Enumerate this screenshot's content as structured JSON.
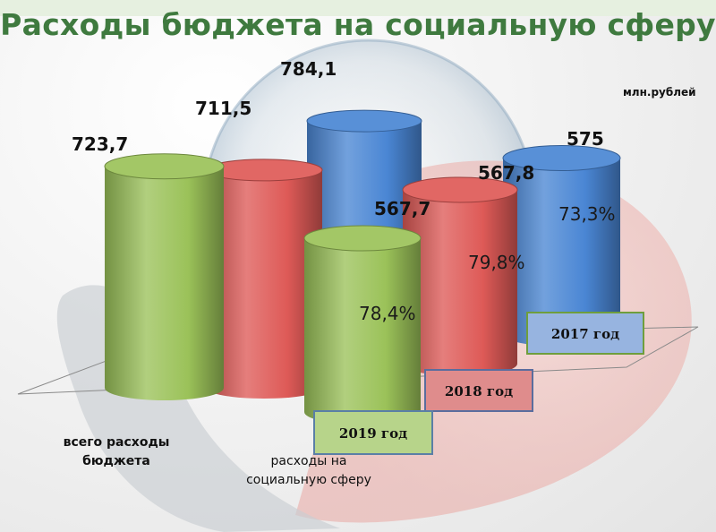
{
  "title": "Расходы бюджета на социальную сферу",
  "unit": "млн.рублей",
  "chart_data": {
    "type": "bar",
    "title": "Расходы бюджета на социальную сферу",
    "unit": "млн.рублей",
    "categories": [
      "всего расходы бюджета",
      "расходы на социальную сферу"
    ],
    "category_labels": [
      [
        "всего расходы",
        "бюджета"
      ],
      [
        "расходы на",
        "социальную сферу"
      ]
    ],
    "series": [
      {
        "name": "2017 год",
        "color": "#4a86d4",
        "values": [
          784.1,
          575
        ],
        "value_labels": [
          "784,1",
          "575"
        ],
        "share_label": "73,3%"
      },
      {
        "name": "2018 год",
        "color": "#de5a57",
        "values": [
          711.5,
          567.8
        ],
        "value_labels": [
          "711,5",
          "567,8"
        ],
        "share_label": "79,8%"
      },
      {
        "name": "2019 год",
        "color": "#9bc259",
        "values": [
          723.7,
          567.7
        ],
        "value_labels": [
          "723,7",
          "567,7"
        ],
        "share_label": "78,4%"
      }
    ],
    "legend_placement": "bottom-right",
    "style": "3d-cylinder"
  }
}
